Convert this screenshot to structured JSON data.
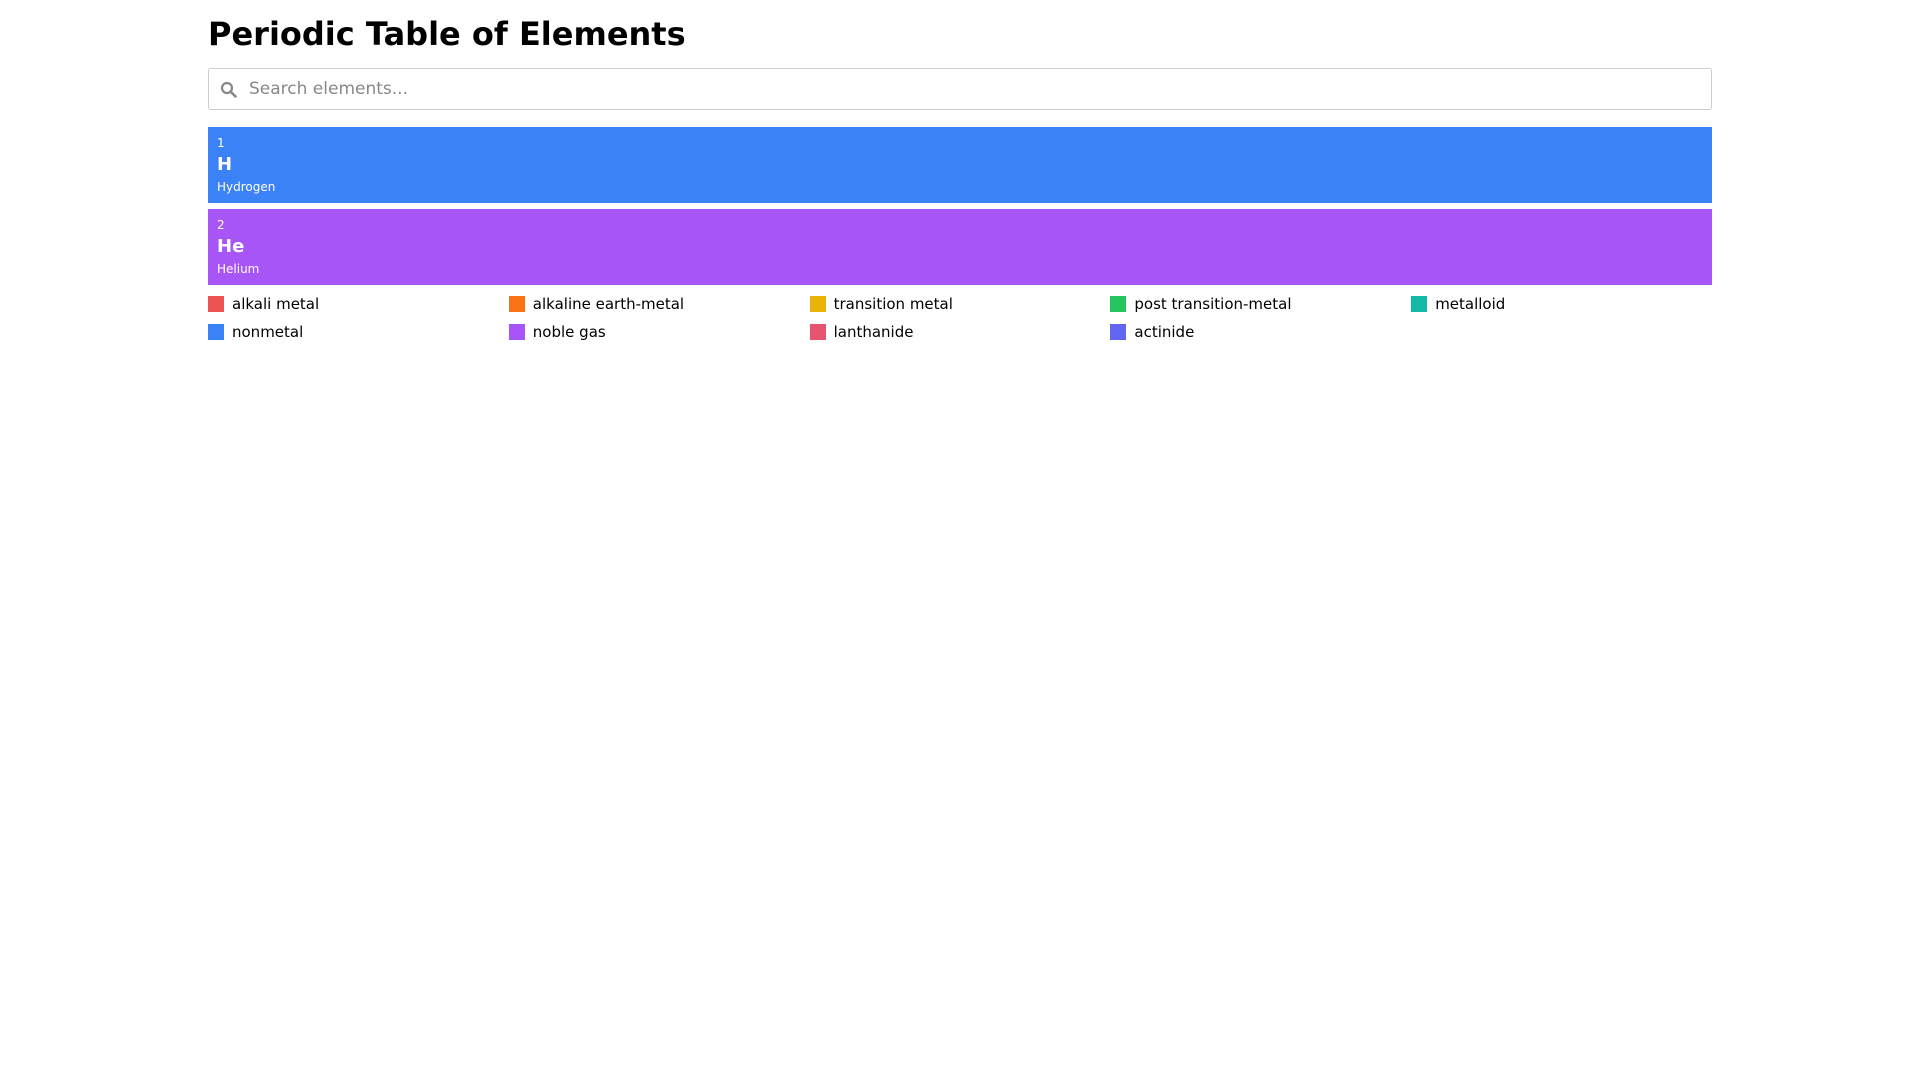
{
  "header": {
    "title": "Periodic Table of Elements"
  },
  "search": {
    "placeholder": "Search elements..."
  },
  "elements": [
    {
      "number": "1",
      "symbol": "H",
      "name": "Hydrogen",
      "color": "#3b82f6"
    },
    {
      "number": "2",
      "symbol": "He",
      "name": "Helium",
      "color": "#a855f7"
    }
  ],
  "legend": [
    {
      "label": "alkali metal",
      "color": "#ef5454"
    },
    {
      "label": "alkaline earth-metal",
      "color": "#f97316"
    },
    {
      "label": "transition metal",
      "color": "#eab308"
    },
    {
      "label": "post transition-metal",
      "color": "#22c55e"
    },
    {
      "label": "metalloid",
      "color": "#14b8a6"
    },
    {
      "label": "nonmetal",
      "color": "#3b82f6"
    },
    {
      "label": "noble gas",
      "color": "#a855f7"
    },
    {
      "label": "lanthanide",
      "color": "#e5566e"
    },
    {
      "label": "actinide",
      "color": "#6366f1"
    }
  ]
}
